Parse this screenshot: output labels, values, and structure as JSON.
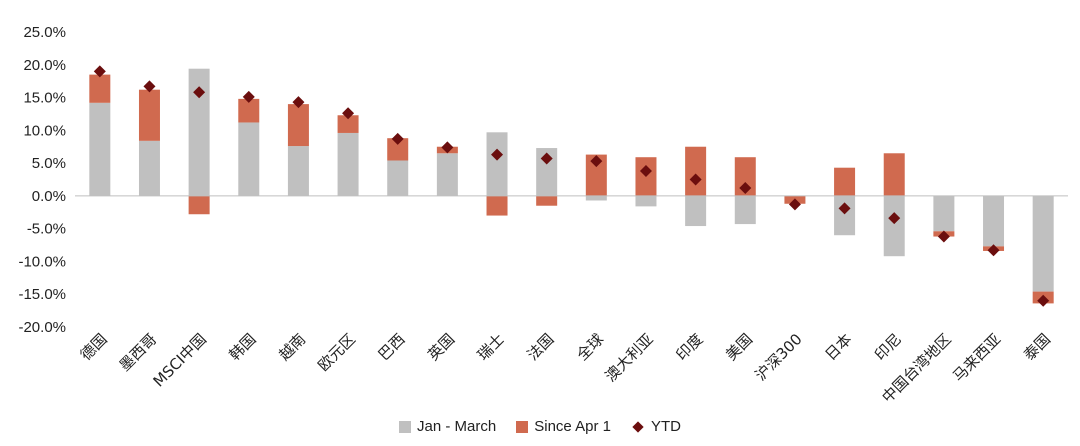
{
  "chart_data": {
    "type": "bar",
    "stacked": true,
    "categories": [
      "德国",
      "墨西哥",
      "MSCI中国",
      "韩国",
      "越南",
      "欧元区",
      "巴西",
      "英国",
      "瑞士",
      "法国",
      "全球",
      "澳大利亚",
      "印度",
      "美国",
      "沪深300",
      "日本",
      "印尼",
      "中国台湾地区",
      "马来西亚",
      "泰国"
    ],
    "series": [
      {
        "name": "Jan - March",
        "kind": "bar",
        "color": "#c0c0c0",
        "values": [
          14.2,
          8.4,
          19.4,
          11.2,
          7.6,
          9.6,
          5.4,
          6.5,
          9.7,
          7.3,
          -0.7,
          -1.6,
          -4.6,
          -4.3,
          0.0,
          -6.0,
          -9.2,
          -5.4,
          -7.7,
          -14.6
        ]
      },
      {
        "name": "Since Apr 1",
        "kind": "bar",
        "color": "#d06a4f",
        "values": [
          4.3,
          7.8,
          -2.8,
          3.6,
          6.4,
          2.7,
          3.4,
          1.0,
          -3.0,
          -1.5,
          6.3,
          5.9,
          7.5,
          5.9,
          -1.2,
          4.3,
          6.5,
          -0.8,
          -0.7,
          -1.8
        ]
      },
      {
        "name": "YTD",
        "kind": "marker",
        "color": "#6b0e0e",
        "values": [
          19.0,
          16.7,
          15.8,
          15.1,
          14.3,
          12.6,
          8.7,
          7.4,
          6.3,
          5.7,
          5.3,
          3.8,
          2.5,
          1.2,
          -1.3,
          -1.9,
          -3.4,
          -6.2,
          -8.3,
          -16.0
        ]
      }
    ],
    "title": "",
    "xlabel": "",
    "ylabel": "",
    "ylim": [
      -20,
      25
    ],
    "yticks": [
      25,
      20,
      15,
      10,
      5,
      0,
      -5,
      -10,
      -15,
      -20
    ],
    "ytick_labels": [
      "25.0%",
      "20.0%",
      "15.0%",
      "10.0%",
      "5.0%",
      "0.0%",
      "-5.0%",
      "-10.0%",
      "-15.0%",
      "-20.0%"
    ],
    "grid": false,
    "legend_position": "bottom"
  },
  "legend": [
    {
      "label": "Jan - March",
      "color": "#c0c0c0",
      "shape": "square"
    },
    {
      "label": "Since Apr 1",
      "color": "#d06a4f",
      "shape": "square"
    },
    {
      "label": "YTD",
      "color": "#6b0e0e",
      "shape": "diamond"
    }
  ]
}
